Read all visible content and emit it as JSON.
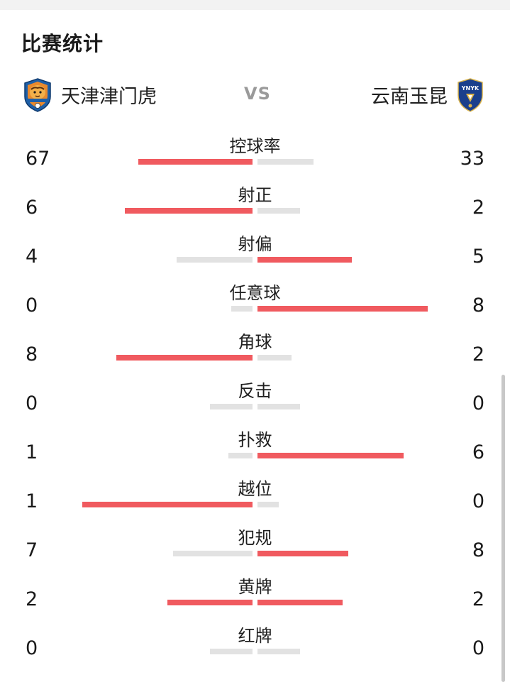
{
  "section_title": "比赛统计",
  "home_team": {
    "name": "天津津门虎",
    "logo_icon": "tianjin-jinmen-tiger-crest-icon"
  },
  "away_team": {
    "name": "云南玉昆",
    "logo_icon": "yunnan-yukun-crest-icon",
    "logo_text": "YNYK"
  },
  "vs_label": "VS",
  "colors": {
    "leading_bar": "#f05a5f",
    "trailing_bar": "#e2e2e2"
  },
  "stats": [
    {
      "label": "控球率",
      "home": "67",
      "away": "33"
    },
    {
      "label": "射正",
      "home": "6",
      "away": "2"
    },
    {
      "label": "射偏",
      "home": "4",
      "away": "5"
    },
    {
      "label": "任意球",
      "home": "0",
      "away": "8"
    },
    {
      "label": "角球",
      "home": "8",
      "away": "2"
    },
    {
      "label": "反击",
      "home": "0",
      "away": "0"
    },
    {
      "label": "扑救",
      "home": "1",
      "away": "6"
    },
    {
      "label": "越位",
      "home": "1",
      "away": "0"
    },
    {
      "label": "犯规",
      "home": "7",
      "away": "8"
    },
    {
      "label": "黄牌",
      "home": "2",
      "away": "2"
    },
    {
      "label": "红牌",
      "home": "0",
      "away": "0"
    }
  ]
}
